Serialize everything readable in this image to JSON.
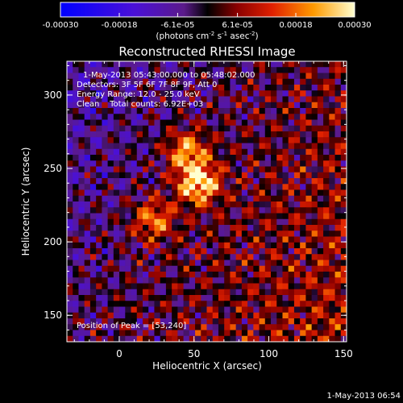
{
  "colorbar": {
    "ticks": [
      {
        "value": -0.0003,
        "label": "-0.00030"
      },
      {
        "value": -0.00018,
        "label": "-0.00018"
      },
      {
        "value": -6.1e-05,
        "label": "-6.1e-05"
      },
      {
        "value": 6.1e-05,
        "label": "6.1e-05"
      },
      {
        "value": 0.00018,
        "label": "0.00018"
      },
      {
        "value": 0.0003,
        "label": "0.00030"
      }
    ],
    "range": [
      -0.0003,
      0.0003
    ],
    "unit_main": "(photons cm",
    "unit_exp1": "-2",
    "unit_mid": " s",
    "unit_exp2": "-1",
    "unit_tail": " asec",
    "unit_exp3": "-2",
    "unit_close": ")"
  },
  "chart_data": {
    "type": "heatmap",
    "title": "Reconstructed RHESSI Image",
    "xlabel": "Heliocentric X (arcsec)",
    "ylabel": "Heliocentric Y (arcsec)",
    "xlim": [
      -35,
      152
    ],
    "ylim": [
      132,
      323
    ],
    "xticks": [
      {
        "value": 0,
        "label": "0"
      },
      {
        "value": 50,
        "label": "50"
      },
      {
        "value": 100,
        "label": "100"
      },
      {
        "value": 150,
        "label": "150"
      }
    ],
    "yticks": [
      {
        "value": 150,
        "label": "150"
      },
      {
        "value": 200,
        "label": "200"
      },
      {
        "value": 250,
        "label": "250"
      },
      {
        "value": 300,
        "label": "300"
      }
    ],
    "sources": [
      {
        "x": 53,
        "y": 240,
        "peak": 0.0003
      },
      {
        "x": 45,
        "y": 262,
        "peak": 0.00022
      },
      {
        "x": 23,
        "y": 215,
        "peak": 0.0002
      }
    ],
    "annotations": {
      "time_range": "1-May-2013 05:43:00.000 to 05:48:02.000",
      "detectors": "Detectors: 3F 5F 6F 7F 8F 9F, Att 0",
      "energy": "Energy Range: 12.0 - 25.0 keV",
      "clean": "Clean    Total counts: 6.92E+03",
      "peak": "Position of Peak = [53,240]"
    }
  },
  "footer": {
    "date": "1-May-2013 06:54"
  }
}
